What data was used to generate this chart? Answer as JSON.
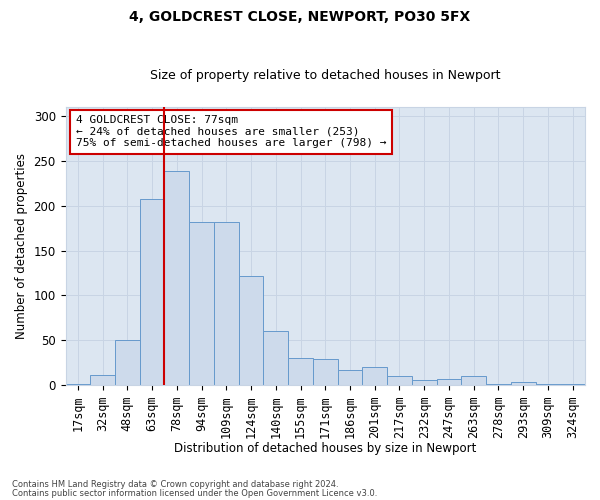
{
  "title1": "4, GOLDCREST CLOSE, NEWPORT, PO30 5FX",
  "title2": "Size of property relative to detached houses in Newport",
  "xlabel": "Distribution of detached houses by size in Newport",
  "ylabel": "Number of detached properties",
  "categories": [
    "17sqm",
    "32sqm",
    "48sqm",
    "63sqm",
    "78sqm",
    "94sqm",
    "109sqm",
    "124sqm",
    "140sqm",
    "155sqm",
    "171sqm",
    "186sqm",
    "201sqm",
    "217sqm",
    "232sqm",
    "247sqm",
    "263sqm",
    "278sqm",
    "293sqm",
    "309sqm",
    "324sqm"
  ],
  "values": [
    1,
    11,
    50,
    207,
    239,
    182,
    182,
    122,
    60,
    30,
    29,
    17,
    20,
    10,
    6,
    7,
    10,
    2,
    4,
    1,
    1
  ],
  "bar_color": "#cddaeb",
  "bar_edge_color": "#6699cc",
  "vline_color": "#cc0000",
  "annotation_text": "4 GOLDCREST CLOSE: 77sqm\n← 24% of detached houses are smaller (253)\n75% of semi-detached houses are larger (798) →",
  "annotation_box_color": "#ffffff",
  "annotation_box_edge": "#cc0000",
  "grid_color": "#c8d4e4",
  "background_color": "#dce6f1",
  "ylim": [
    0,
    310
  ],
  "yticks": [
    0,
    50,
    100,
    150,
    200,
    250,
    300
  ],
  "vline_position": 3.5,
  "footer1": "Contains HM Land Registry data © Crown copyright and database right 2024.",
  "footer2": "Contains public sector information licensed under the Open Government Licence v3.0."
}
